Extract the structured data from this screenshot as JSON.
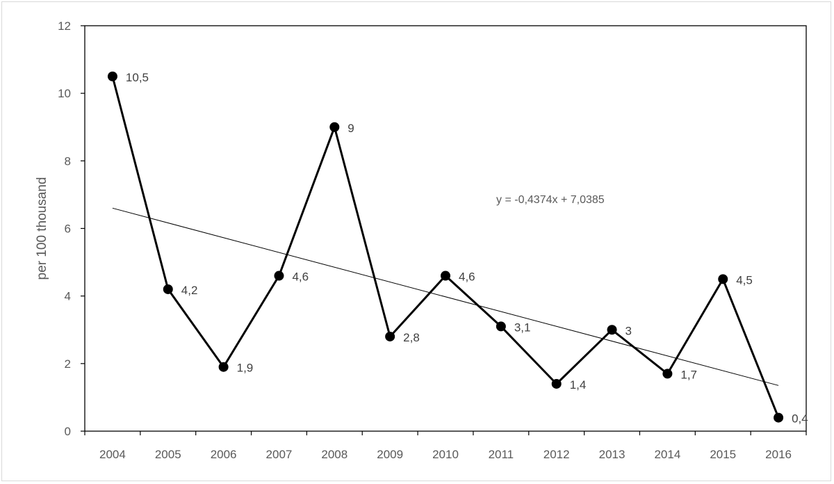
{
  "chart_data": {
    "type": "line",
    "title": "",
    "xlabel": "",
    "ylabel": "per 100 thousand",
    "ylim": [
      0,
      12
    ],
    "y_ticks": [
      0,
      2,
      4,
      6,
      8,
      10,
      12
    ],
    "grid": false,
    "categories": [
      "2004",
      "2005",
      "2006",
      "2007",
      "2008",
      "2009",
      "2010",
      "2011",
      "2012",
      "2013",
      "2014",
      "2015",
      "2016"
    ],
    "series": [
      {
        "values": [
          10.5,
          4.2,
          1.9,
          4.6,
          9,
          2.8,
          4.6,
          3.1,
          1.4,
          3,
          1.7,
          4.5,
          0.4
        ],
        "data_labels": [
          "10,5",
          "4,2",
          "1,9",
          "4,6",
          "9",
          "2,8",
          "4,6",
          "3,1",
          "1,4",
          "3",
          "1,7",
          "4,5",
          "0,4"
        ],
        "color": "#000000"
      }
    ],
    "trendline": {
      "type": "linear",
      "slope": -0.4374,
      "intercept": 7.0385,
      "equation": "y = -0,4374x + 7,0385",
      "color": "#000000"
    }
  }
}
